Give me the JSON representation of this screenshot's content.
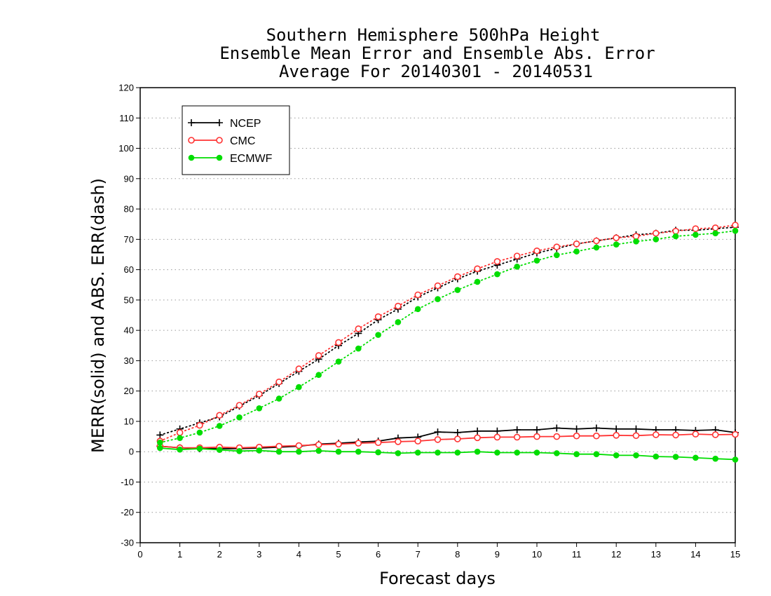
{
  "chart_data": {
    "type": "line",
    "title_lines": [
      "Southern Hemisphere 500hPa Height",
      "Ensemble Mean Error and Ensemble Abs. Error",
      "Average For 20140301 - 20140531"
    ],
    "xlabel": "Forecast days",
    "ylabel": "MERR(solid) and ABS. ERR(dash)",
    "xlim": [
      0,
      15
    ],
    "ylim": [
      -30,
      120
    ],
    "x_ticks": [
      0,
      1,
      2,
      3,
      4,
      5,
      6,
      7,
      8,
      9,
      10,
      11,
      12,
      13,
      14,
      15
    ],
    "y_ticks": [
      -30,
      -20,
      -10,
      0,
      10,
      20,
      30,
      40,
      50,
      60,
      70,
      80,
      90,
      100,
      110,
      120
    ],
    "grid": "dotted horizontal",
    "legend_position": "top-left",
    "x": [
      0.5,
      1,
      1.5,
      2,
      2.5,
      3,
      3.5,
      4,
      4.5,
      5,
      5.5,
      6,
      6.5,
      7,
      7.5,
      8,
      8.5,
      9,
      9.5,
      10,
      10.5,
      11,
      11.5,
      12,
      12.5,
      13,
      13.5,
      14,
      14.5,
      15
    ],
    "series": [
      {
        "name": "NCEP",
        "color": "#000000",
        "marker": "plus",
        "merr": [
          1.8,
          1.3,
          1.0,
          1.0,
          1.0,
          1.2,
          1.5,
          1.8,
          2.5,
          2.8,
          3.2,
          3.5,
          4.5,
          4.8,
          6.5,
          6.3,
          6.8,
          6.8,
          7.2,
          7.2,
          7.8,
          7.5,
          7.8,
          7.5,
          7.5,
          7.2,
          7.2,
          7.0,
          7.2,
          6.3
        ],
        "abs_err": [
          5.5,
          7.5,
          9.5,
          11.5,
          15.0,
          18.5,
          22.5,
          26.5,
          30.5,
          35.0,
          39.0,
          43.5,
          47.0,
          51.0,
          54.0,
          57.0,
          59.5,
          61.5,
          63.5,
          65.5,
          67.0,
          68.5,
          69.5,
          70.5,
          71.5,
          72.0,
          73.0,
          73.0,
          73.5,
          74.0
        ]
      },
      {
        "name": "CMC",
        "color": "#ff3333",
        "marker": "open-circle",
        "merr": [
          1.8,
          1.3,
          1.3,
          1.5,
          1.3,
          1.5,
          1.8,
          2.0,
          2.3,
          2.5,
          2.8,
          3.0,
          3.3,
          3.5,
          4.0,
          4.2,
          4.6,
          4.8,
          4.8,
          5.0,
          5.0,
          5.2,
          5.2,
          5.4,
          5.3,
          5.6,
          5.5,
          5.8,
          5.6,
          5.7
        ],
        "abs_err": [
          3.5,
          6.3,
          8.7,
          12.0,
          15.3,
          19.0,
          23.0,
          27.3,
          31.7,
          36.0,
          40.5,
          44.5,
          48.0,
          51.7,
          54.7,
          57.7,
          60.3,
          62.7,
          64.5,
          66.2,
          67.5,
          68.5,
          69.5,
          70.5,
          71.0,
          72.0,
          72.7,
          73.5,
          73.8,
          74.7
        ]
      },
      {
        "name": "ECMWF",
        "color": "#00dd00",
        "marker": "filled-circle",
        "merr": [
          1.2,
          0.7,
          1.0,
          0.6,
          0.2,
          0.4,
          0.0,
          0.0,
          0.3,
          0.0,
          0.0,
          -0.2,
          -0.5,
          -0.3,
          -0.3,
          -0.3,
          0.0,
          -0.3,
          -0.3,
          -0.3,
          -0.5,
          -0.8,
          -0.8,
          -1.2,
          -1.2,
          -1.6,
          -1.7,
          -2.0,
          -2.3,
          -2.6
        ],
        "abs_err": [
          3.0,
          4.5,
          6.3,
          8.5,
          11.3,
          14.3,
          17.5,
          21.3,
          25.3,
          29.7,
          34.0,
          38.5,
          42.7,
          47.0,
          50.3,
          53.3,
          56.0,
          58.5,
          61.0,
          63.0,
          64.8,
          66.0,
          67.3,
          68.3,
          69.3,
          70.0,
          71.0,
          71.5,
          72.0,
          72.8
        ]
      }
    ]
  }
}
